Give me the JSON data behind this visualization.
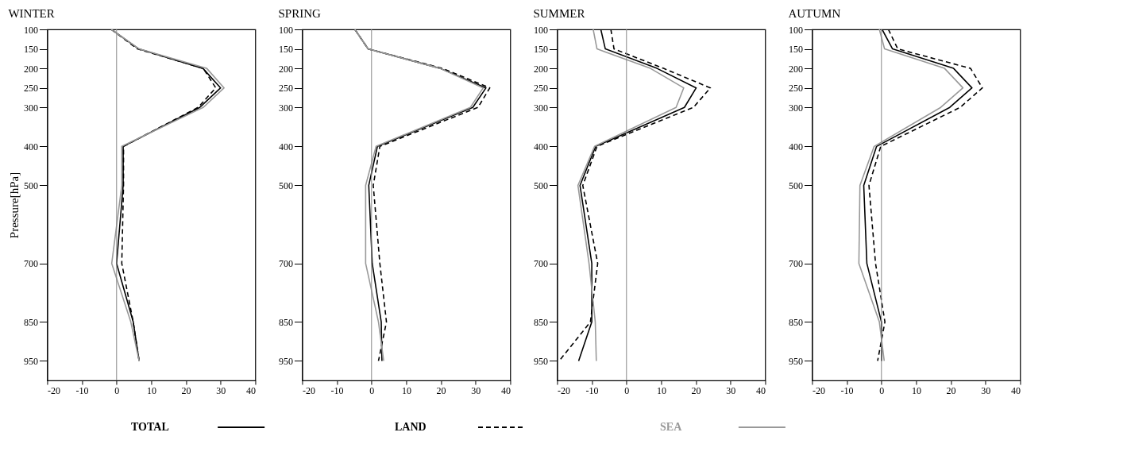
{
  "chart_data": [
    {
      "type": "line",
      "title": "WINTER",
      "ylabel": "Pressure[hPa]",
      "xlim": [
        -20,
        40
      ],
      "xticks": [
        -20,
        -10,
        0,
        10,
        20,
        30,
        40
      ],
      "ylim": [
        1000,
        100
      ],
      "yticks": [
        100,
        150,
        200,
        250,
        300,
        400,
        500,
        700,
        850,
        950
      ],
      "grid": false,
      "legend": "bottom",
      "ref_lines": [
        {
          "axis": "x",
          "value": 0,
          "color": "#888888"
        }
      ],
      "series": [
        {
          "name": "TOTAL",
          "color": "#000000",
          "line_style": "solid",
          "x": [
            -1.5,
            6.4,
            24.9,
            30,
            24,
            1.9,
            1.9,
            0,
            4.8,
            6.5
          ],
          "values": [
            100,
            150,
            200,
            250,
            300,
            400,
            500,
            700,
            850,
            950
          ]
        },
        {
          "name": "LAND",
          "color": "#000000",
          "line_style": "dashed",
          "x": [
            -1.5,
            6,
            25,
            28.6,
            23.5,
            2,
            2,
            1.5,
            4.8,
            6.5
          ],
          "values": [
            100,
            150,
            200,
            250,
            300,
            400,
            500,
            700,
            850,
            950
          ]
        },
        {
          "name": "SEA",
          "color": "#999999",
          "line_style": "solid",
          "x": [
            -1.5,
            6.5,
            26,
            31,
            25,
            1.5,
            1.5,
            -1.4,
            4.1,
            6.5
          ],
          "values": [
            100,
            150,
            200,
            250,
            300,
            400,
            500,
            700,
            850,
            950
          ]
        }
      ]
    },
    {
      "type": "line",
      "title": "SPRING",
      "xlim": [
        -20,
        40
      ],
      "xticks": [
        -20,
        -10,
        0,
        10,
        20,
        30,
        40
      ],
      "ylim": [
        1000,
        100
      ],
      "yticks": [
        100,
        150,
        200,
        250,
        300,
        400,
        500,
        700,
        850,
        950
      ],
      "grid": false,
      "ref_lines": [
        {
          "axis": "x",
          "value": 0,
          "color": "#888888"
        }
      ],
      "series": [
        {
          "color": "#000000",
          "line_style": "solid",
          "x": [
            -4.8,
            -1,
            19.8,
            33,
            29.2,
            1.7,
            -0.8,
            0.2,
            2.8,
            3
          ],
          "values": [
            100,
            150,
            200,
            250,
            300,
            400,
            500,
            700,
            850,
            950
          ]
        },
        {
          "color": "#000000",
          "line_style": "dashed",
          "x": [
            -4.8,
            -1,
            20.5,
            34.1,
            30.7,
            2.4,
            0.5,
            2.4,
            4.3,
            2
          ],
          "values": [
            100,
            150,
            200,
            250,
            300,
            400,
            500,
            700,
            850,
            950
          ]
        },
        {
          "color": "#999999",
          "line_style": "solid",
          "x": [
            -4.8,
            -1,
            19.8,
            32.2,
            28.5,
            1.3,
            -1.7,
            -1.7,
            2,
            3.5
          ],
          "values": [
            100,
            150,
            200,
            250,
            300,
            400,
            500,
            700,
            850,
            950
          ]
        }
      ]
    },
    {
      "type": "line",
      "title": "SUMMER",
      "xlim": [
        -20,
        40
      ],
      "xticks": [
        -20,
        -10,
        0,
        10,
        20,
        30,
        40
      ],
      "ylim": [
        1000,
        100
      ],
      "yticks": [
        100,
        150,
        200,
        250,
        300,
        400,
        500,
        700,
        850,
        950
      ],
      "grid": false,
      "ref_lines": [
        {
          "axis": "x",
          "value": 0,
          "color": "#888888"
        }
      ],
      "series": [
        {
          "color": "#000000",
          "line_style": "solid",
          "x": [
            -7.4,
            -6.1,
            8.8,
            20.1,
            16.7,
            -8.9,
            -13.4,
            -10,
            -10,
            -13.8
          ],
          "values": [
            100,
            150,
            200,
            250,
            300,
            400,
            500,
            700,
            850,
            950
          ]
        },
        {
          "color": "#000000",
          "line_style": "dashed",
          "x": [
            -4.5,
            -3.6,
            10.7,
            24.2,
            19.3,
            -8.5,
            -12.6,
            -8.3,
            -10.4,
            -19.4
          ],
          "values": [
            100,
            150,
            200,
            250,
            300,
            400,
            500,
            700,
            850,
            950
          ]
        },
        {
          "color": "#999999",
          "line_style": "solid",
          "x": [
            -9.6,
            -8.5,
            6.9,
            16.5,
            14.3,
            -9.2,
            -14,
            -10.8,
            -9,
            -8.7
          ],
          "values": [
            100,
            150,
            200,
            250,
            300,
            400,
            500,
            700,
            850,
            950
          ]
        }
      ]
    },
    {
      "type": "line",
      "title": "AUTUMN",
      "xlim": [
        -20,
        40
      ],
      "xticks": [
        -20,
        -10,
        0,
        10,
        20,
        30,
        40
      ],
      "ylim": [
        1000,
        100
      ],
      "yticks": [
        100,
        150,
        200,
        250,
        300,
        400,
        500,
        700,
        850,
        950
      ],
      "grid": false,
      "ref_lines": [
        {
          "axis": "x",
          "value": 0,
          "color": "#888888"
        }
      ],
      "series": [
        {
          "color": "#000000",
          "line_style": "solid",
          "x": [
            0.2,
            3.2,
            20.8,
            26.1,
            19.7,
            -1.4,
            -5.1,
            -4.2,
            0,
            0
          ],
          "values": [
            100,
            150,
            200,
            250,
            300,
            400,
            500,
            700,
            850,
            950
          ]
        },
        {
          "color": "#000000",
          "line_style": "dashed",
          "x": [
            2,
            4.7,
            25.7,
            29.1,
            22.7,
            -0.2,
            -3.6,
            -1.7,
            1,
            -1.1
          ],
          "values": [
            100,
            150,
            200,
            250,
            300,
            400,
            500,
            700,
            850,
            950
          ]
        },
        {
          "color": "#999999",
          "line_style": "solid",
          "x": [
            -0.6,
            0.9,
            18.2,
            23.5,
            17.1,
            -2.1,
            -6.2,
            -6.5,
            -0.6,
            0.8
          ],
          "values": [
            100,
            150,
            200,
            250,
            300,
            400,
            500,
            700,
            850,
            950
          ]
        }
      ]
    }
  ]
}
